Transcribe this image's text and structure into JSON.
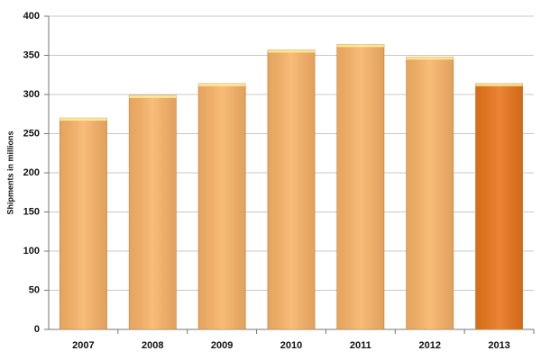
{
  "chart_data": {
    "type": "bar",
    "y_label": "Shipments in millions",
    "categories": [
      "2007",
      "2008",
      "2009",
      "2010",
      "2011",
      "2012",
      "2013"
    ],
    "values": [
      270,
      299,
      314,
      357,
      364,
      348,
      314
    ],
    "colors": [
      "#f9b367",
      "#f9b367",
      "#f9b367",
      "#f9b367",
      "#f9b367",
      "#f9b367",
      "#e8751a"
    ],
    "ylim": [
      0,
      400
    ],
    "yticks": [
      0,
      50,
      100,
      150,
      200,
      250,
      300,
      350,
      400
    ],
    "grid": true
  }
}
